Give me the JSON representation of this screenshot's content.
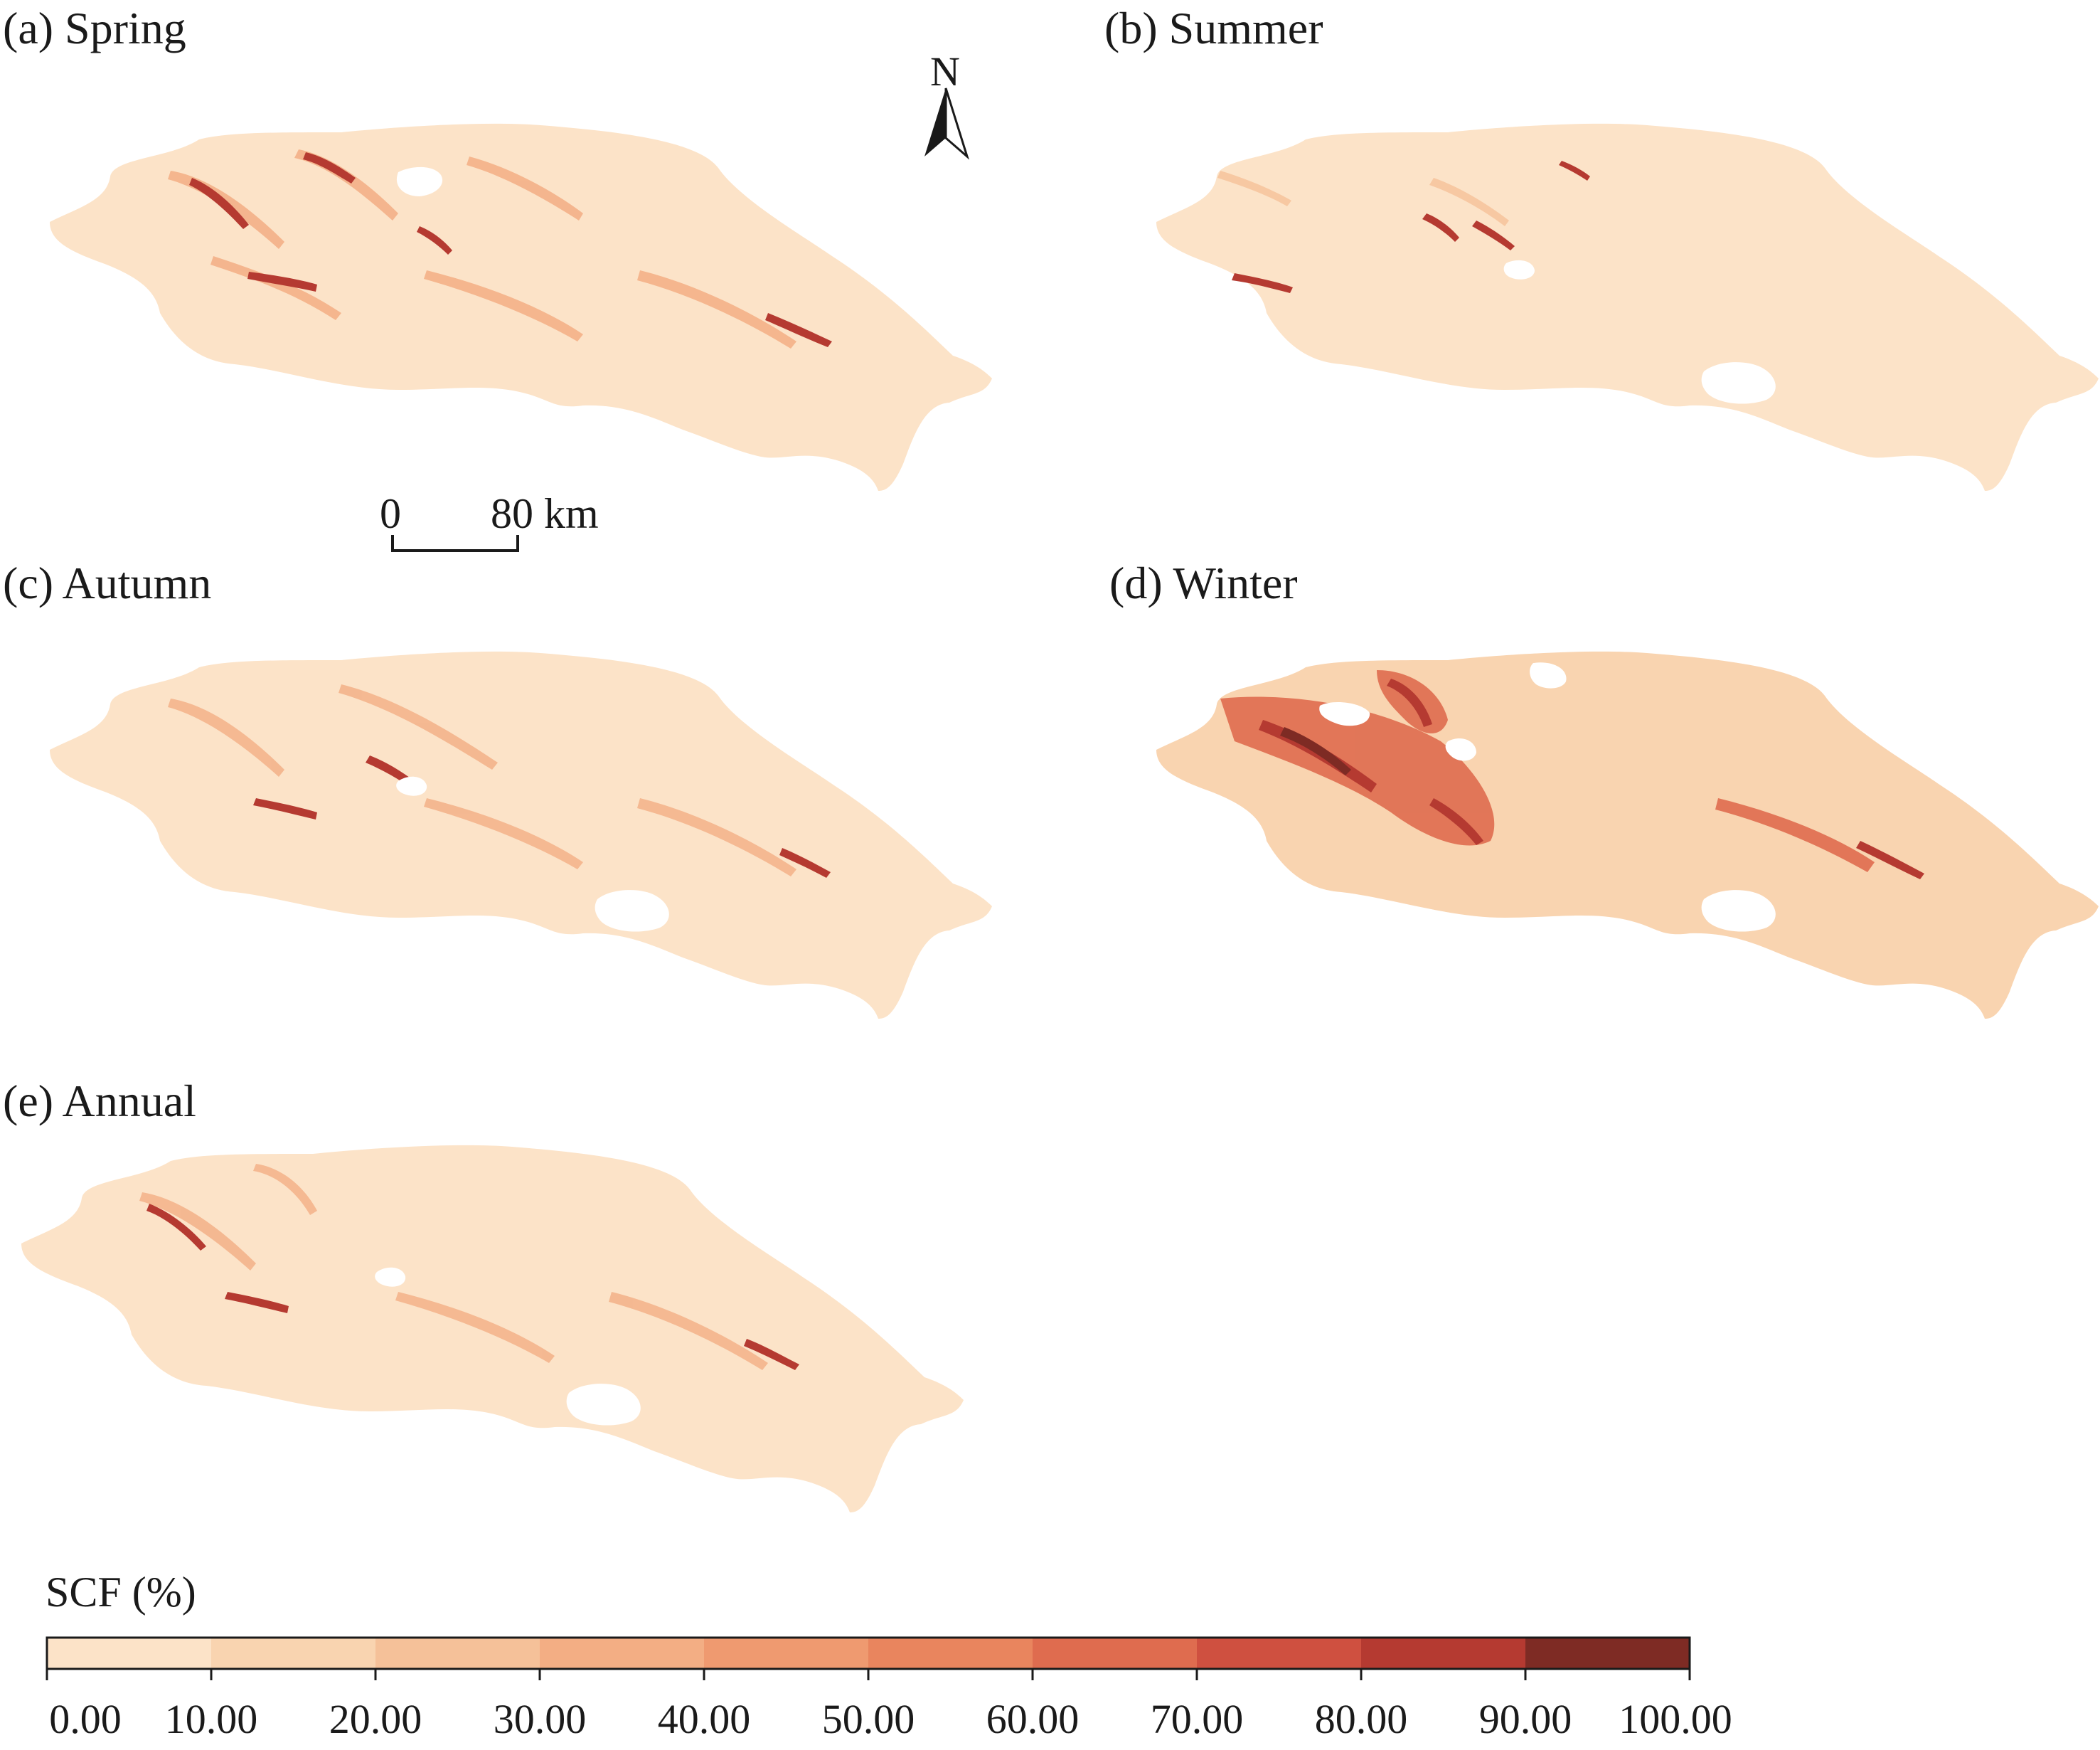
{
  "panels": [
    {
      "id": "a",
      "title": "(a) Spring"
    },
    {
      "id": "b",
      "title": "(b) Summer"
    },
    {
      "id": "c",
      "title": "(c) Autumn"
    },
    {
      "id": "d",
      "title": "(d) Winter"
    },
    {
      "id": "e",
      "title": "(e) Annual"
    }
  ],
  "north_arrow": {
    "label": "N",
    "icon": "north-arrow-icon"
  },
  "scale_bar": {
    "start": "0",
    "end": "80 km"
  },
  "legend": {
    "title": "SCF (%)",
    "ticks": [
      "0.00",
      "10.00",
      "20.00",
      "30.00",
      "40.00",
      "50.00",
      "60.00",
      "70.00",
      "80.00",
      "90.00",
      "100.00"
    ],
    "colors": [
      "#fce3c8",
      "#f9d4b0",
      "#f5c199",
      "#f3ae84",
      "#ef9a70",
      "#e9855e",
      "#df6c4f",
      "#cf5040",
      "#b53a31",
      "#7e2b24"
    ]
  }
}
